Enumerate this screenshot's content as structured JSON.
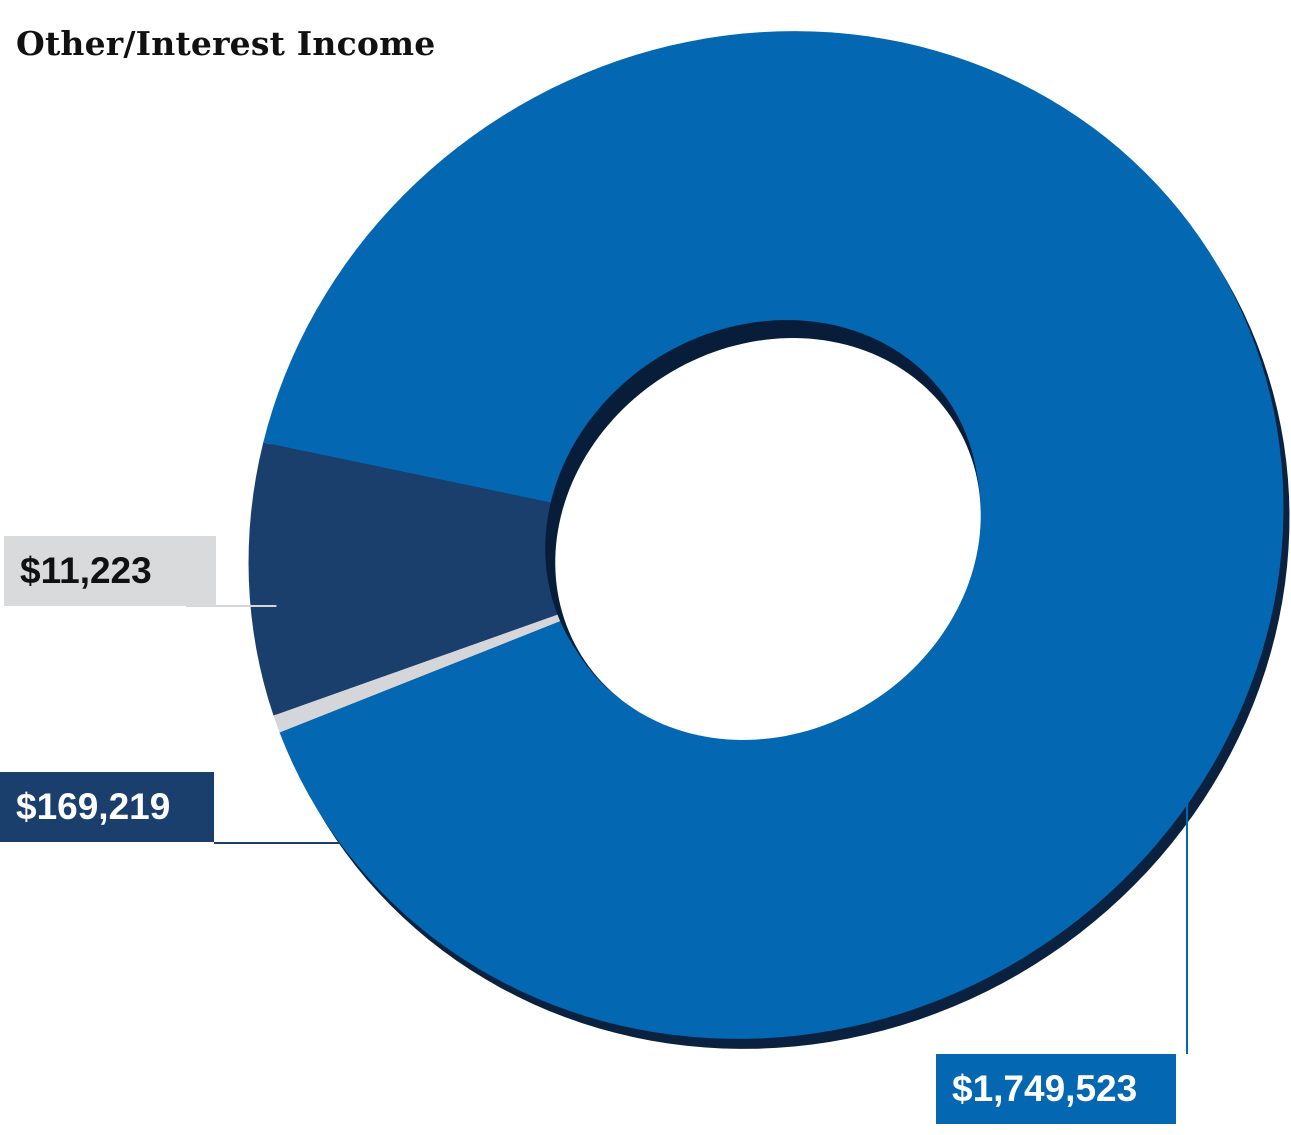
{
  "title": "Other/Interest Income",
  "colors": {
    "background": "#ffffff",
    "title_text": "#111111",
    "outline": "#0a2240"
  },
  "chart_data": {
    "type": "pie",
    "style": "donut",
    "title": "Other/Interest Income",
    "slices": [
      {
        "label": "$11,223",
        "value": 11223,
        "color": "#d4d6d9",
        "label_bg": "#d9dadc",
        "label_text_color": "#111111"
      },
      {
        "label": "$169,219",
        "value": 169219,
        "color": "#1b3f6d",
        "label_bg": "#1b3f6d",
        "label_text_color": "#ffffff"
      },
      {
        "label": "$1,749,523",
        "value": 1749523,
        "color": "#0467b1",
        "label_bg": "#0467b1",
        "label_text_color": "#ffffff"
      }
    ]
  }
}
